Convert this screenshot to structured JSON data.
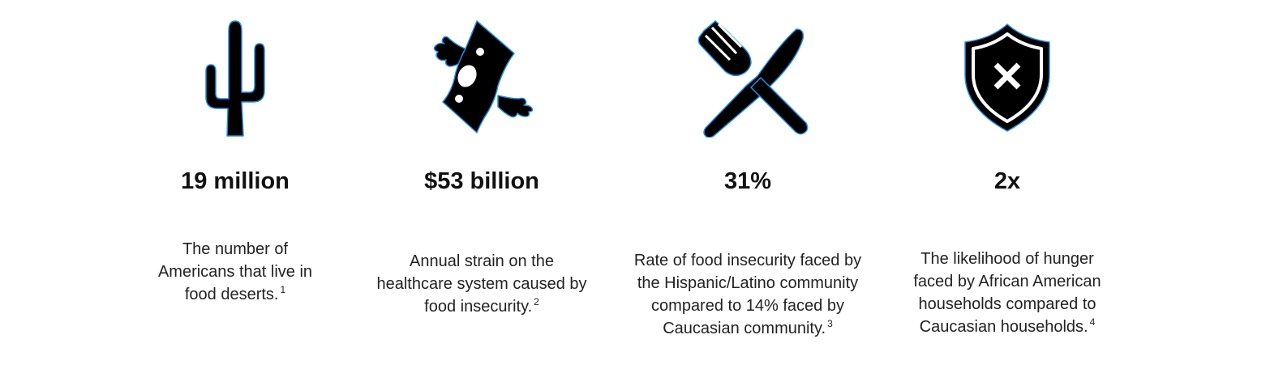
{
  "colors": {
    "icon_fill": "#000000",
    "icon_outline": "#1f8fe6",
    "text": "#111111"
  },
  "stats": [
    {
      "icon": "cactus-icon",
      "figure": "19 million",
      "description": "The number of Americans that live in food deserts.",
      "footnote": "1"
    },
    {
      "icon": "flying-money-icon",
      "figure": "$53 billion",
      "description": "Annual strain on the healthcare system caused by food insecurity.",
      "footnote": "2"
    },
    {
      "icon": "fork-knife-icon",
      "figure": "31%",
      "description": "Rate of food insecurity faced by the Hispanic/Latino community compared to 14% faced by Caucasian community.",
      "footnote": "3"
    },
    {
      "icon": "shield-x-icon",
      "figure": "2x",
      "description": "The likelihood of hunger faced by African American households compared to Caucasian households.",
      "footnote": "4"
    }
  ]
}
